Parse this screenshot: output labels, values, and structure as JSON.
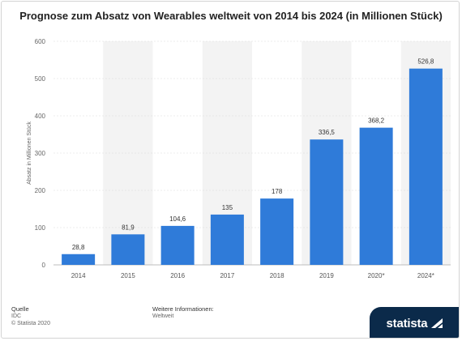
{
  "title": "Prognose zum Absatz von Wearables weltweit von 2014 bis 2024 (in Millionen Stück)",
  "chart_data": {
    "type": "bar",
    "categories": [
      "2014",
      "2015",
      "2016",
      "2017",
      "2018",
      "2019",
      "2020*",
      "2024*"
    ],
    "values": [
      28.8,
      81.9,
      104.6,
      135,
      178,
      336.5,
      368.2,
      526.8
    ],
    "value_labels": [
      "28,8",
      "81,9",
      "104,6",
      "135",
      "178",
      "336,5",
      "368,2",
      "526,8"
    ],
    "ylabel": "Absatz in Millionen Stück",
    "ylim": [
      0,
      600
    ],
    "yticks": [
      0,
      100,
      200,
      300,
      400,
      500,
      600
    ],
    "grid": true,
    "bar_color": "#2f7bd9",
    "band_color": "#f3f3f3"
  },
  "footer": {
    "source_label": "Quelle",
    "source_value": "IDC",
    "copyright": "© Statista 2020",
    "info_label": "Weitere Informationen:",
    "info_value": "Weltweit"
  },
  "brand": {
    "name": "statista",
    "background": "#0b2a4a"
  }
}
